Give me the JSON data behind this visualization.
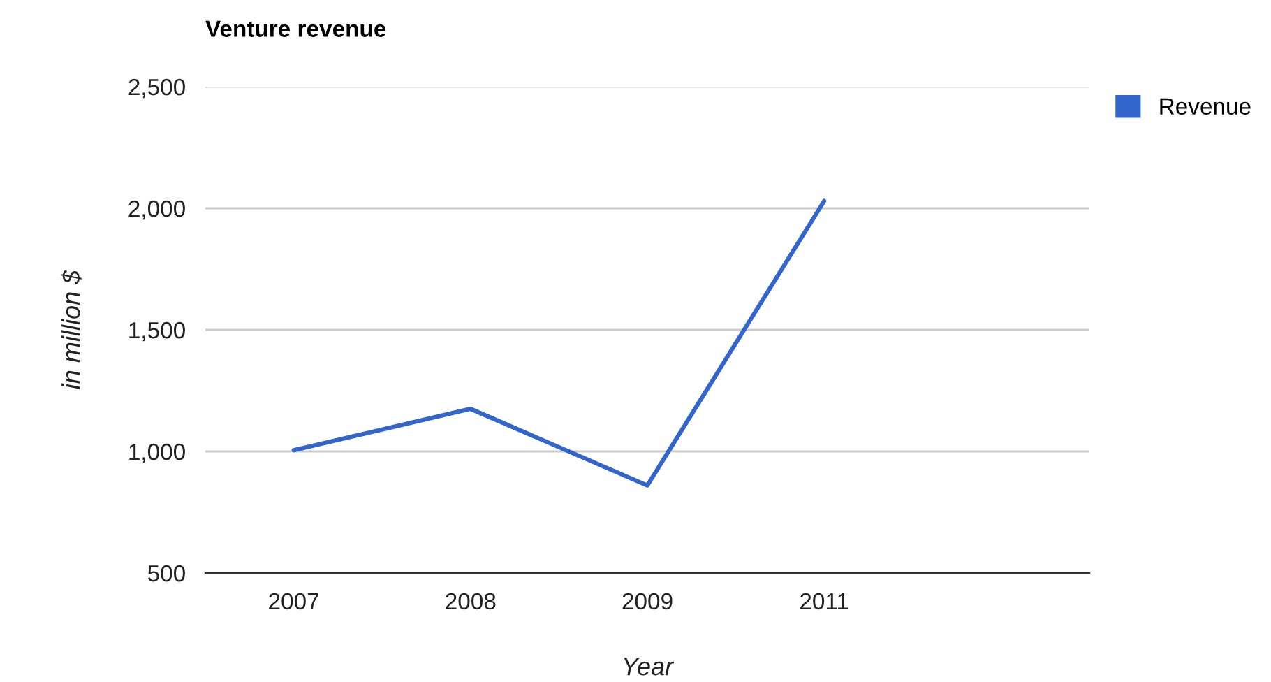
{
  "chart_data": {
    "type": "line",
    "title": "Venture revenue",
    "xlabel": "Year",
    "ylabel": "in million $",
    "categories": [
      "2007",
      "2008",
      "2009",
      "2011",
      null
    ],
    "series": [
      {
        "name": "Revenue",
        "color": "#3366cc",
        "values": [
          1005,
          1175,
          860,
          2030,
          null
        ]
      }
    ],
    "ylim": [
      500,
      2500
    ],
    "yticks": [
      {
        "value": 500,
        "label": "500"
      },
      {
        "value": 1000,
        "label": "1,000"
      },
      {
        "value": 1500,
        "label": "1,500"
      },
      {
        "value": 2000,
        "label": "2,000"
      },
      {
        "value": 2500,
        "label": "2,500"
      }
    ],
    "grid": "y",
    "legend": "right"
  }
}
